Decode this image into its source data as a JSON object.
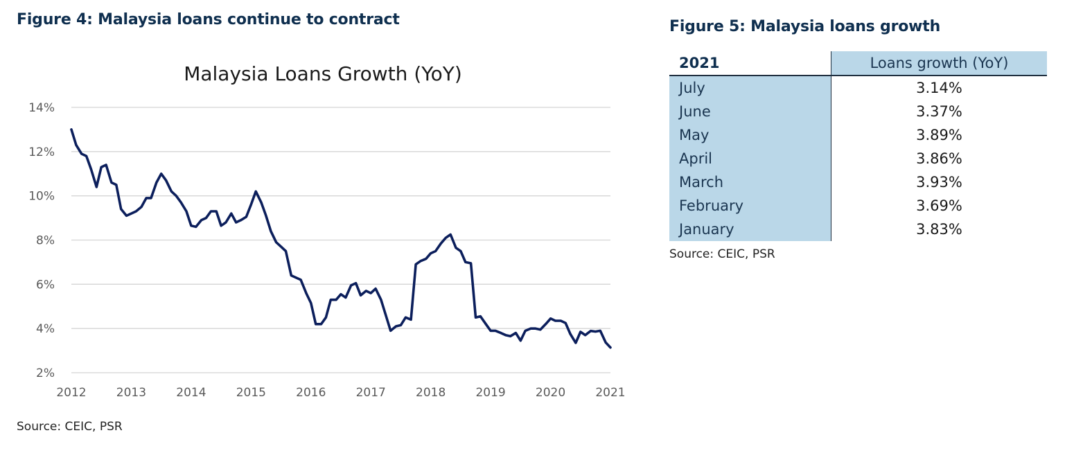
{
  "figure4": {
    "heading": "Figure 4: Malaysia loans continue to contract",
    "source": "Source: CEIC, PSR"
  },
  "figure5": {
    "heading": "Figure 5: Malaysia loans growth",
    "source": "Source: CEIC, PSR"
  },
  "chart_data": [
    {
      "type": "line",
      "title": "Malaysia Loans Growth (YoY)",
      "xlabel": "",
      "ylabel": "",
      "x_ticks": [
        "2012",
        "2013",
        "2014",
        "2015",
        "2016",
        "2017",
        "2018",
        "2019",
        "2020",
        "2021"
      ],
      "y_ticks": [
        "14%",
        "12%",
        "10%",
        "8%",
        "6%",
        "4%",
        "2%"
      ],
      "xlim": [
        2012,
        2021
      ],
      "ylim": [
        2,
        14
      ],
      "grid": "horizontal",
      "legend": "none",
      "line_color": "#0c1f5c",
      "series": [
        {
          "x": [
            2012.0,
            2012.08,
            2012.17,
            2012.25,
            2012.33,
            2012.42,
            2012.5,
            2012.58,
            2012.67,
            2012.75,
            2012.83,
            2012.92,
            2013.0,
            2013.08,
            2013.17,
            2013.25,
            2013.33,
            2013.42,
            2013.5,
            2013.58,
            2013.67,
            2013.75,
            2013.83,
            2013.92,
            2014.0,
            2014.08,
            2014.17,
            2014.25,
            2014.33,
            2014.42,
            2014.5,
            2014.58,
            2014.67,
            2014.75,
            2014.83,
            2014.92,
            2015.0,
            2015.08,
            2015.17,
            2015.25,
            2015.33,
            2015.42,
            2015.5,
            2015.58,
            2015.67,
            2015.75,
            2015.83,
            2015.92,
            2016.0,
            2016.08,
            2016.17,
            2016.25,
            2016.33,
            2016.42,
            2016.5,
            2016.58,
            2016.67,
            2016.75,
            2016.83,
            2016.92,
            2017.0,
            2017.08,
            2017.17,
            2017.25,
            2017.33,
            2017.42,
            2017.5,
            2017.58,
            2017.67,
            2017.75,
            2017.83,
            2017.92,
            2018.0,
            2018.08,
            2018.17,
            2018.25,
            2018.33,
            2018.42,
            2018.5,
            2018.58,
            2018.67,
            2018.75,
            2018.83,
            2018.92,
            2019.0,
            2019.08,
            2019.17,
            2019.25,
            2019.33,
            2019.42,
            2019.5,
            2019.58,
            2019.67,
            2019.75,
            2019.83,
            2019.92,
            2020.0,
            2020.08,
            2020.17,
            2020.25,
            2020.33,
            2020.42,
            2020.5,
            2020.58,
            2020.67,
            2020.75,
            2020.83,
            2020.92,
            2021.0
          ],
          "y": [
            13.0,
            12.3,
            11.9,
            11.8,
            11.2,
            10.4,
            11.3,
            11.4,
            10.6,
            10.5,
            9.4,
            9.1,
            9.2,
            9.3,
            9.5,
            9.9,
            9.9,
            10.6,
            11.0,
            10.7,
            10.2,
            10.0,
            9.7,
            9.3,
            8.65,
            8.6,
            8.9,
            9.0,
            9.3,
            9.3,
            8.65,
            8.8,
            9.2,
            8.8,
            8.9,
            9.05,
            9.6,
            10.2,
            9.7,
            9.1,
            8.4,
            7.9,
            7.7,
            7.5,
            6.4,
            6.3,
            6.2,
            5.6,
            5.15,
            4.2,
            4.2,
            4.5,
            5.3,
            5.3,
            5.55,
            5.4,
            5.95,
            6.05,
            5.5,
            5.7,
            5.6,
            5.8,
            5.3,
            4.6,
            3.9,
            4.1,
            4.15,
            4.5,
            4.4,
            6.9,
            7.05,
            7.15,
            7.4,
            7.5,
            7.85,
            8.1,
            8.25,
            7.65,
            7.5,
            7.0,
            6.95,
            4.5,
            4.55,
            4.2,
            3.9,
            3.9,
            3.8,
            3.7,
            3.65,
            3.8,
            3.45,
            3.9,
            4.0,
            4.0,
            3.95,
            4.2,
            4.45,
            4.35,
            4.35,
            4.25,
            3.75,
            3.35,
            3.85,
            3.7,
            3.89,
            3.86,
            3.9,
            3.37,
            3.14
          ]
        }
      ]
    },
    {
      "type": "table",
      "title": "",
      "columns": [
        "2021",
        "Loans growth (YoY)"
      ],
      "rows": [
        {
          "label": "July",
          "value": "3.14%"
        },
        {
          "label": "June",
          "value": "3.37%"
        },
        {
          "label": "May",
          "value": "3.89%"
        },
        {
          "label": "April",
          "value": "3.86%"
        },
        {
          "label": "March",
          "value": "3.93%"
        },
        {
          "label": "February",
          "value": "3.69%"
        },
        {
          "label": "January",
          "value": "3.83%"
        }
      ]
    }
  ]
}
